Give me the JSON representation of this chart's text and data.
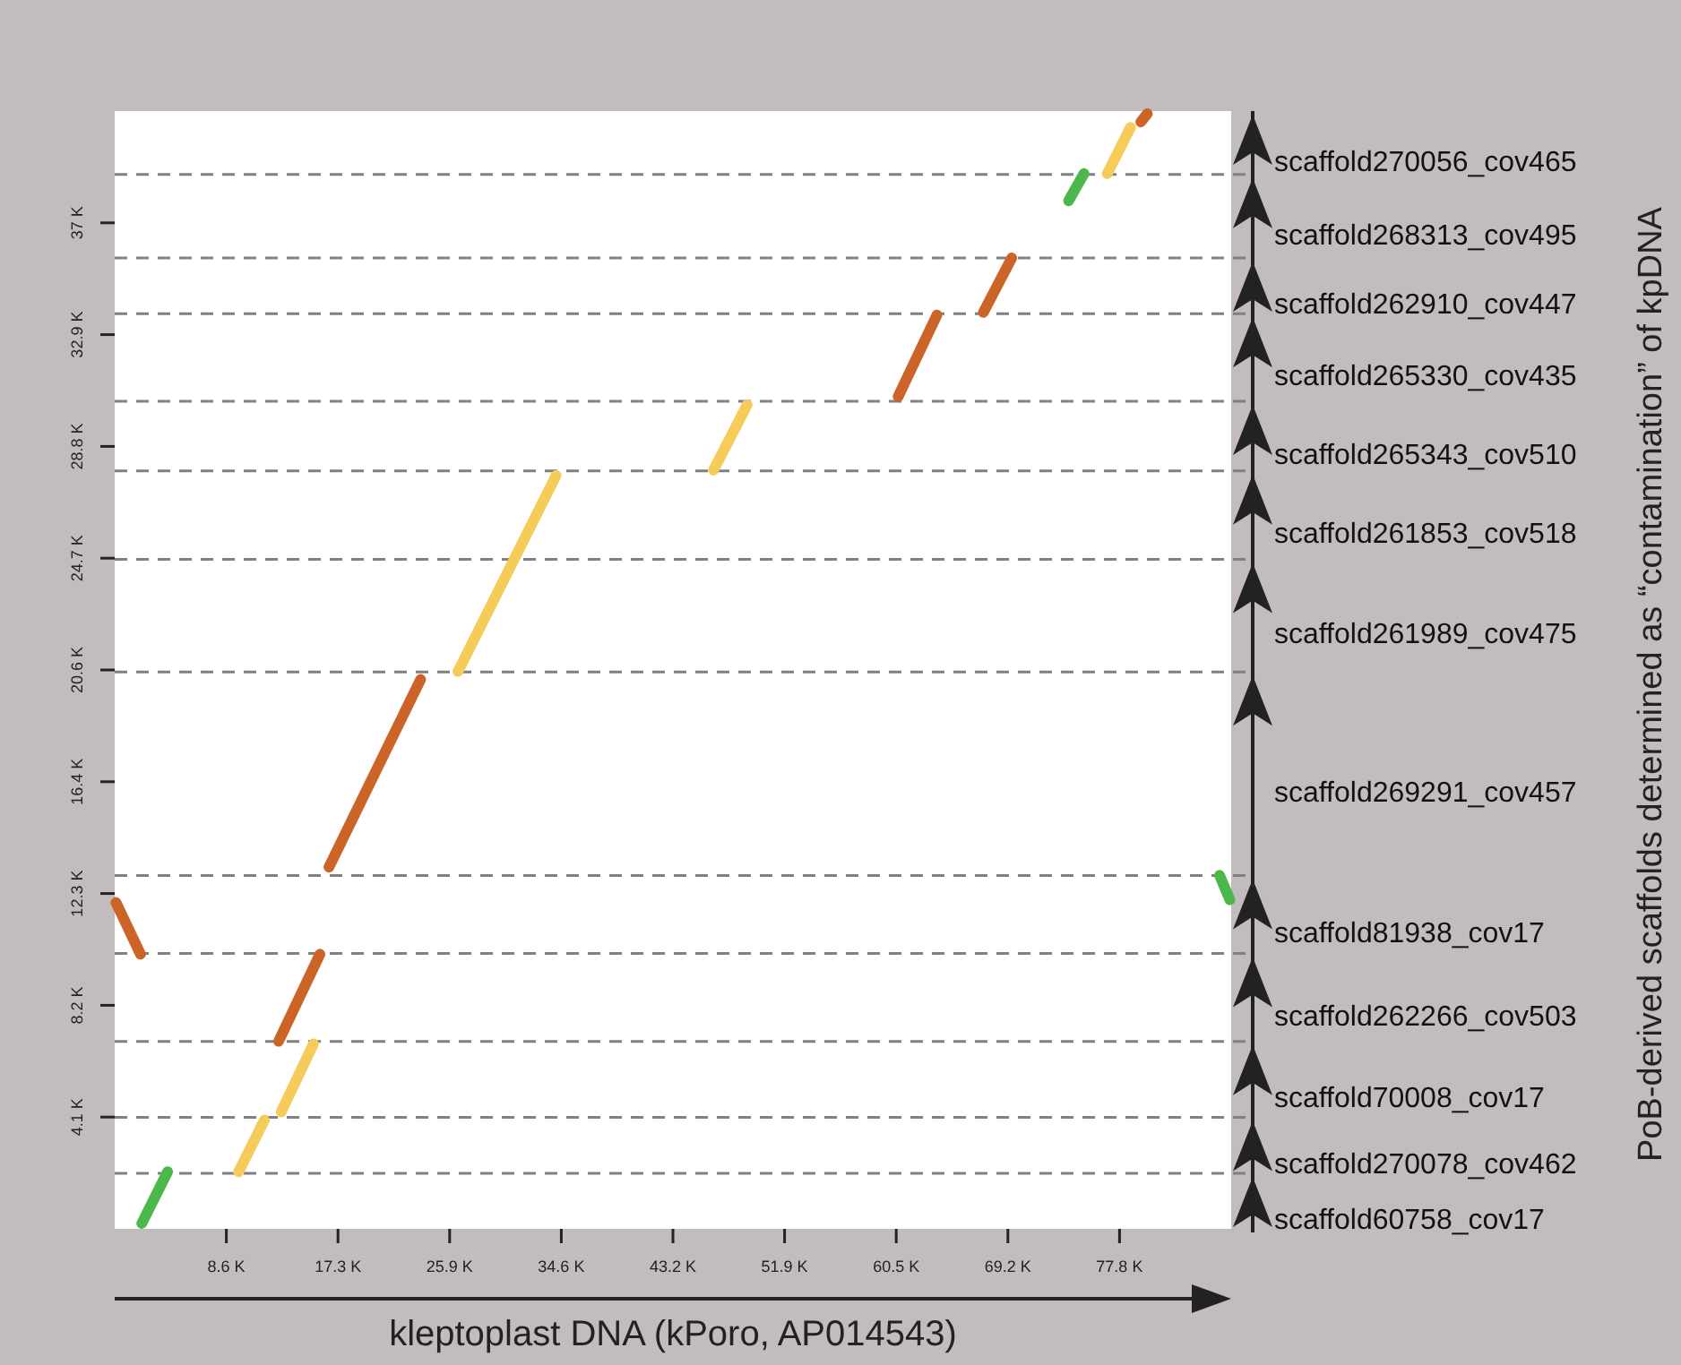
{
  "chart_data": {
    "type": "line",
    "xlabel": "kleptoplast DNA (kPoro, AP014543)",
    "xlim": [
      0,
      86.5
    ],
    "ylim": [
      0,
      41.1
    ],
    "xticks": [
      {
        "value": 8.65,
        "label": "8.6 K"
      },
      {
        "value": 17.3,
        "label": "17.3 K"
      },
      {
        "value": 25.95,
        "label": "25.9 K"
      },
      {
        "value": 34.6,
        "label": "34.6 K"
      },
      {
        "value": 43.25,
        "label": "43.2 K"
      },
      {
        "value": 51.9,
        "label": "51.9 K"
      },
      {
        "value": 60.55,
        "label": "60.5 K"
      },
      {
        "value": 69.2,
        "label": "69.2 K"
      },
      {
        "value": 77.85,
        "label": "77.8 K"
      }
    ],
    "yticks": [
      {
        "value": 4.11,
        "label": "4.1 K"
      },
      {
        "value": 8.22,
        "label": "8.2 K"
      },
      {
        "value": 12.33,
        "label": "12.3 K"
      },
      {
        "value": 16.44,
        "label": "16.4 K"
      },
      {
        "value": 20.55,
        "label": "20.6 K"
      },
      {
        "value": 24.66,
        "label": "24.7 K"
      },
      {
        "value": 28.77,
        "label": "28.8 K"
      },
      {
        "value": 32.88,
        "label": "32.9 K"
      },
      {
        "value": 36.99,
        "label": "37 K"
      }
    ],
    "annotations": [
      "scaffold60758_cov17",
      "scaffold270078_cov462",
      "scaffold70008_cov17",
      "scaffold262266_cov503",
      "scaffold81938_cov17",
      "scaffold269291_cov457",
      "scaffold261989_cov475",
      "scaffold261853_cov518",
      "scaffold265343_cov510",
      "scaffold265330_cov435",
      "scaffold262910_cov447",
      "scaffold268313_cov495",
      "scaffold270056_cov465",
      "PoB-derived scaffolds determined as “contamination” of kpDNA"
    ],
    "ref_lines": [
      {
        "axis": "y",
        "value": 2.04,
        "color": "#808080",
        "line_style": "dashed"
      },
      {
        "axis": "y",
        "value": 4.1,
        "color": "#808080",
        "line_style": "dashed"
      },
      {
        "axis": "y",
        "value": 6.89,
        "color": "#808080",
        "line_style": "dashed"
      },
      {
        "axis": "y",
        "value": 10.13,
        "color": "#808080",
        "line_style": "dashed"
      },
      {
        "axis": "y",
        "value": 12.99,
        "color": "#808080",
        "line_style": "dashed"
      },
      {
        "axis": "y",
        "value": 20.48,
        "color": "#808080",
        "line_style": "dashed"
      },
      {
        "axis": "y",
        "value": 24.62,
        "color": "#808080",
        "line_style": "dashed"
      },
      {
        "axis": "y",
        "value": 27.87,
        "color": "#808080",
        "line_style": "dashed"
      },
      {
        "axis": "y",
        "value": 30.43,
        "color": "#808080",
        "line_style": "dashed"
      },
      {
        "axis": "y",
        "value": 33.65,
        "color": "#808080",
        "line_style": "dashed"
      },
      {
        "axis": "y",
        "value": 35.7,
        "color": "#808080",
        "line_style": "dashed"
      },
      {
        "axis": "y",
        "value": 38.77,
        "color": "#808080",
        "line_style": "dashed"
      }
    ],
    "series": [
      {
        "color": "#4cb84c",
        "x": [
          2.1,
          4.1
        ],
        "values": [
          0.2,
          2.1
        ]
      },
      {
        "color": "#f5cc5a",
        "x": [
          9.6,
          11.6
        ],
        "values": [
          2.1,
          4.0
        ]
      },
      {
        "color": "#f5cc5a",
        "x": [
          12.9,
          15.4
        ],
        "values": [
          4.3,
          6.8
        ]
      },
      {
        "color": "#cc6428",
        "x": [
          12.7,
          15.9
        ],
        "values": [
          6.9,
          10.1
        ]
      },
      {
        "color": "#cc6428",
        "x": [
          0.1,
          2.0
        ],
        "values": [
          12.0,
          10.1
        ]
      },
      {
        "color": "#cc6428",
        "x": [
          16.6,
          23.7
        ],
        "values": [
          13.3,
          20.2
        ]
      },
      {
        "color": "#f5cc5a",
        "x": [
          26.6,
          34.2
        ],
        "values": [
          20.5,
          27.7
        ]
      },
      {
        "color": "#f5cc5a",
        "x": [
          46.4,
          49.0
        ],
        "values": [
          27.9,
          30.3
        ]
      },
      {
        "color": "#cc6428",
        "x": [
          60.7,
          63.7
        ],
        "values": [
          30.6,
          33.6
        ]
      },
      {
        "color": "#cc6428",
        "x": [
          67.3,
          69.5
        ],
        "values": [
          33.7,
          35.7
        ]
      },
      {
        "color": "#4cb84c",
        "x": [
          73.9,
          75.1
        ],
        "values": [
          37.8,
          38.8
        ]
      },
      {
        "color": "#f5cc5a",
        "x": [
          76.9,
          78.7
        ],
        "values": [
          38.8,
          40.5
        ]
      },
      {
        "color": "#cc6428",
        "x": [
          79.5,
          80.0
        ],
        "values": [
          40.7,
          41.0
        ]
      },
      {
        "color": "#4cb84c",
        "x": [
          85.6,
          86.4
        ],
        "values": [
          13.0,
          12.1
        ]
      }
    ]
  }
}
